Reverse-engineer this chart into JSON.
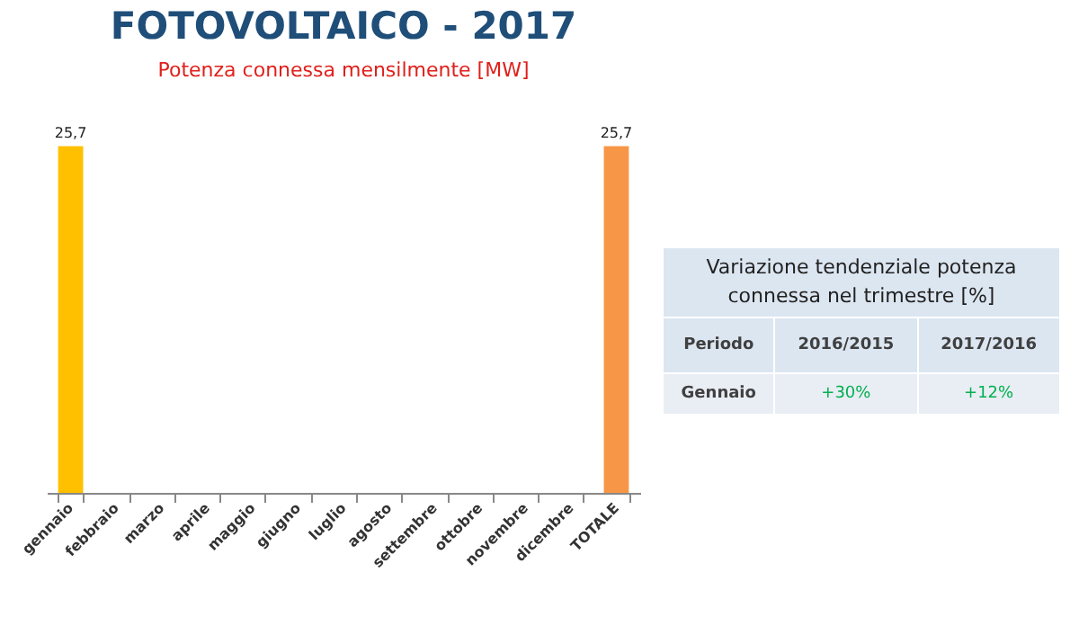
{
  "chart_data": [
    {
      "type": "bar",
      "title": "FOTOVOLTAICO - 2017",
      "subtitle": "Potenza connessa mensilmente [MW]",
      "categories": [
        "gennaio",
        "febbraio",
        "marzo",
        "aprile",
        "maggio",
        "giugno",
        "luglio",
        "agosto",
        "settembre",
        "ottobre",
        "novembre",
        "dicembre",
        "TOTALE"
      ],
      "values": [
        25.7,
        null,
        null,
        null,
        null,
        null,
        null,
        null,
        null,
        null,
        null,
        null,
        25.7
      ],
      "colors": [
        "#ffc000",
        "#ffc000",
        "#ffc000",
        "#ffc000",
        "#ffc000",
        "#ffc000",
        "#ffc000",
        "#ffc000",
        "#ffc000",
        "#ffc000",
        "#ffc000",
        "#ffc000",
        "#f79646"
      ],
      "value_labels": [
        "25,7",
        null,
        null,
        null,
        null,
        null,
        null,
        null,
        null,
        null,
        null,
        null,
        "25,7"
      ]
    },
    {
      "type": "other",
      "title": "Variazione tendenziale potenza connessa nel trimestre [%]",
      "annotations": [
        "Periodo",
        "2016/2015",
        "2017/2016",
        "Gennaio",
        "+30%",
        "+12%"
      ]
    }
  ]
}
